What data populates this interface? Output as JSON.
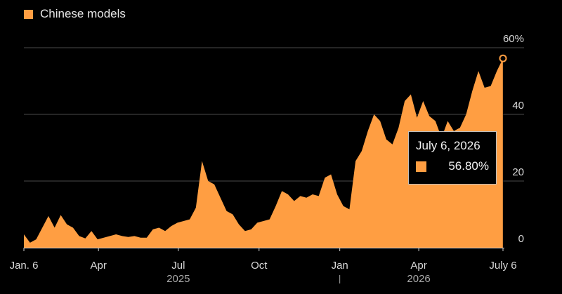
{
  "legend": {
    "label": "Chinese models",
    "color": "#ff9e42"
  },
  "tooltip": {
    "date": "July 6, 2026",
    "value": "56.80%"
  },
  "chart_data": {
    "type": "area",
    "title": "",
    "xlabel": "",
    "ylabel": "",
    "ylim": [
      0,
      60
    ],
    "grid": true,
    "legend_position": "top-left",
    "y_ticks": [
      {
        "value": 60,
        "label": "60%"
      },
      {
        "value": 40,
        "label": "40"
      },
      {
        "value": 20,
        "label": "20"
      },
      {
        "value": 0,
        "label": "0"
      }
    ],
    "x_range": [
      "2025-01-06",
      "2026-07-06"
    ],
    "x_ticks": [
      {
        "date": "2025-01-06",
        "label": "Jan. 6"
      },
      {
        "date": "2025-04-01",
        "label": "Apr"
      },
      {
        "date": "2025-07-01",
        "label": "Jul"
      },
      {
        "date": "2025-10-01",
        "label": "Oct"
      },
      {
        "date": "2026-01-01",
        "label": "Jan"
      },
      {
        "date": "2026-04-01",
        "label": "Apr"
      },
      {
        "date": "2026-07-06",
        "label": "July 6"
      }
    ],
    "year_labels": [
      {
        "date": "2025-07-01",
        "label": "2025"
      },
      {
        "date": "2026-04-01",
        "label": "2026"
      }
    ],
    "series": [
      {
        "name": "Chinese models",
        "color": "#ff9e42",
        "points": [
          [
            "2025-01-06",
            4.0
          ],
          [
            "2025-01-13",
            1.5
          ],
          [
            "2025-01-20",
            2.5
          ],
          [
            "2025-01-27",
            6.0
          ],
          [
            "2025-02-03",
            9.5
          ],
          [
            "2025-02-10",
            6.0
          ],
          [
            "2025-02-17",
            9.8
          ],
          [
            "2025-02-24",
            7.0
          ],
          [
            "2025-03-03",
            6.0
          ],
          [
            "2025-03-10",
            3.5
          ],
          [
            "2025-03-17",
            2.8
          ],
          [
            "2025-03-24",
            5.0
          ],
          [
            "2025-03-31",
            2.5
          ],
          [
            "2025-04-07",
            3.0
          ],
          [
            "2025-04-14",
            3.5
          ],
          [
            "2025-04-21",
            4.0
          ],
          [
            "2025-04-28",
            3.5
          ],
          [
            "2025-05-05",
            3.2
          ],
          [
            "2025-05-12",
            3.5
          ],
          [
            "2025-05-19",
            3.0
          ],
          [
            "2025-05-26",
            3.0
          ],
          [
            "2025-06-02",
            5.5
          ],
          [
            "2025-06-09",
            6.0
          ],
          [
            "2025-06-16",
            5.0
          ],
          [
            "2025-06-23",
            6.5
          ],
          [
            "2025-06-30",
            7.5
          ],
          [
            "2025-07-07",
            8.0
          ],
          [
            "2025-07-14",
            8.5
          ],
          [
            "2025-07-21",
            12.0
          ],
          [
            "2025-07-28",
            26.0
          ],
          [
            "2025-08-04",
            20.0
          ],
          [
            "2025-08-11",
            19.0
          ],
          [
            "2025-08-18",
            15.0
          ],
          [
            "2025-08-25",
            11.0
          ],
          [
            "2025-09-01",
            10.0
          ],
          [
            "2025-09-08",
            7.0
          ],
          [
            "2025-09-15",
            5.0
          ],
          [
            "2025-09-22",
            5.5
          ],
          [
            "2025-09-29",
            7.5
          ],
          [
            "2025-10-06",
            8.0
          ],
          [
            "2025-10-13",
            8.5
          ],
          [
            "2025-10-20",
            12.5
          ],
          [
            "2025-10-27",
            17.0
          ],
          [
            "2025-11-03",
            16.0
          ],
          [
            "2025-11-10",
            14.0
          ],
          [
            "2025-11-17",
            15.5
          ],
          [
            "2025-11-24",
            15.0
          ],
          [
            "2025-12-01",
            16.0
          ],
          [
            "2025-12-08",
            15.5
          ],
          [
            "2025-12-15",
            21.0
          ],
          [
            "2025-12-22",
            22.0
          ],
          [
            "2025-12-29",
            16.0
          ],
          [
            "2026-01-05",
            12.5
          ],
          [
            "2026-01-12",
            11.5
          ],
          [
            "2026-01-19",
            26.0
          ],
          [
            "2026-01-26",
            29.0
          ],
          [
            "2026-02-02",
            35.0
          ],
          [
            "2026-02-09",
            40.0
          ],
          [
            "2026-02-16",
            38.0
          ],
          [
            "2026-02-23",
            32.5
          ],
          [
            "2026-03-02",
            31.0
          ],
          [
            "2026-03-09",
            36.0
          ],
          [
            "2026-03-16",
            44.0
          ],
          [
            "2026-03-23",
            46.0
          ],
          [
            "2026-03-30",
            39.0
          ],
          [
            "2026-04-06",
            44.0
          ],
          [
            "2026-04-13",
            39.5
          ],
          [
            "2026-04-20",
            38.0
          ],
          [
            "2026-04-27",
            33.0
          ],
          [
            "2026-05-04",
            38.0
          ],
          [
            "2026-05-11",
            35.0
          ],
          [
            "2026-05-18",
            36.0
          ],
          [
            "2026-05-25",
            40.0
          ],
          [
            "2026-06-01",
            47.0
          ],
          [
            "2026-06-08",
            53.0
          ],
          [
            "2026-06-15",
            48.0
          ],
          [
            "2026-06-22",
            48.5
          ],
          [
            "2026-06-29",
            53.0
          ],
          [
            "2026-07-06",
            56.8
          ]
        ]
      }
    ],
    "highlight": {
      "date": "2026-07-06",
      "value": 56.8
    }
  }
}
